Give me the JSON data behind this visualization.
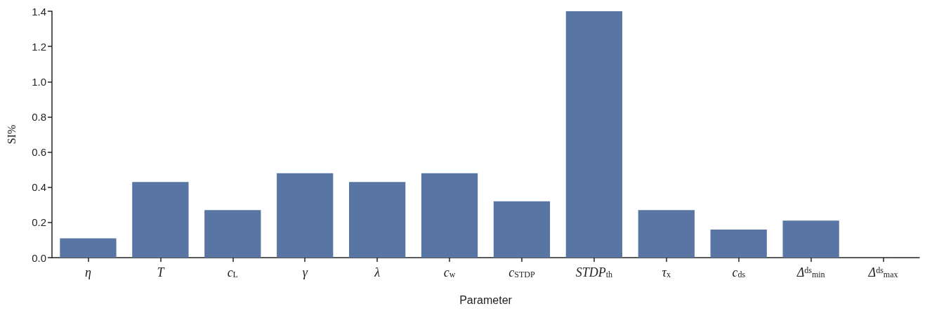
{
  "chart_data": {
    "type": "bar",
    "xlabel": "Parameter",
    "ylabel": "SI%",
    "categories": [
      "η",
      "T",
      "c$_{L}$",
      "γ",
      "λ",
      "c$_{w}$",
      "c$_{STDP}$",
      "STDP$_{th}$",
      "τ$_{x}$",
      "c$_{ds}$",
      "Δ$^{ds}$$_{min}$",
      "Δ$^{ds}$$_{max}$"
    ],
    "values": [
      0.11,
      0.43,
      0.27,
      0.48,
      0.43,
      0.48,
      0.32,
      1.4,
      0.27,
      0.16,
      0.21,
      0
    ],
    "color": "#5975a4",
    "ylim": [
      0,
      1.4
    ],
    "yticks": [
      {
        "value": 0,
        "label": "0.0"
      },
      {
        "value": 0.2,
        "label": "0.2"
      },
      {
        "value": 0.4,
        "label": "0.4"
      },
      {
        "value": 0.6,
        "label": "0.6"
      },
      {
        "value": 0.8,
        "label": "0.8"
      },
      {
        "value": 1.0,
        "label": "1.0"
      },
      {
        "value": 1.2,
        "label": "1.2"
      },
      {
        "value": 1.4,
        "label": "1.4"
      }
    ],
    "grid": false
  }
}
